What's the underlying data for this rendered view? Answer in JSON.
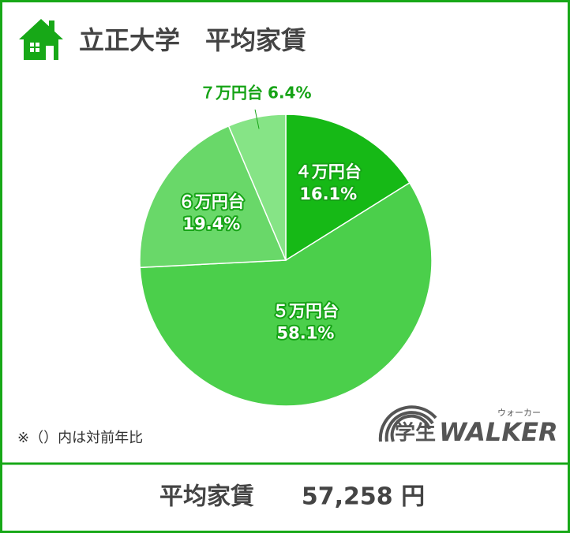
{
  "chart_data": {
    "type": "pie",
    "title": "立正大学　平均家賃",
    "categories": [
      "４万円台",
      "５万円台",
      "６万円台",
      "７万円台"
    ],
    "values": [
      16.1,
      58.1,
      19.4,
      6.4
    ],
    "value_labels": [
      "16.1%",
      "58.1%",
      "19.4%",
      "6.4%"
    ],
    "colors": [
      "#16b916",
      "#4bcf4b",
      "#69d869",
      "#86e486"
    ]
  },
  "note": "※（）内は対前年比",
  "logo": {
    "main": "学生",
    "brand": "WALKER",
    "ruby": "ウォーカー"
  },
  "footer": {
    "label": "平均家賃",
    "amount": "57,258 円"
  }
}
